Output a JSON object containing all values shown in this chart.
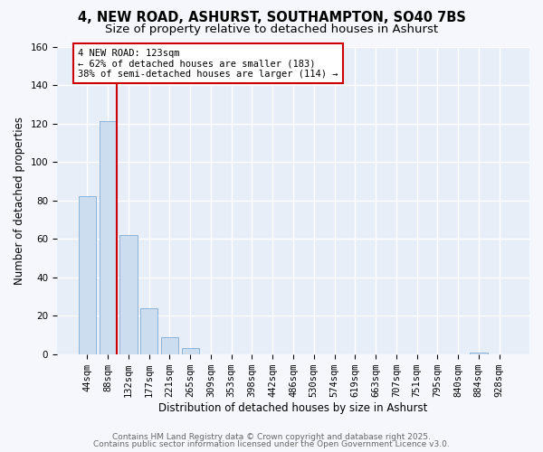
{
  "title": "4, NEW ROAD, ASHURST, SOUTHAMPTON, SO40 7BS",
  "subtitle": "Size of property relative to detached houses in Ashurst",
  "xlabel": "Distribution of detached houses by size in Ashurst",
  "ylabel": "Number of detached properties",
  "bar_labels": [
    "44sqm",
    "88sqm",
    "132sqm",
    "177sqm",
    "221sqm",
    "265sqm",
    "309sqm",
    "353sqm",
    "398sqm",
    "442sqm",
    "486sqm",
    "530sqm",
    "574sqm",
    "619sqm",
    "663sqm",
    "707sqm",
    "751sqm",
    "795sqm",
    "840sqm",
    "884sqm",
    "928sqm"
  ],
  "bar_values": [
    82,
    121,
    62,
    24,
    9,
    3,
    0,
    0,
    0,
    0,
    0,
    0,
    0,
    0,
    0,
    0,
    0,
    0,
    0,
    1,
    0
  ],
  "bar_color": "#ccddf0",
  "bar_edge_color": "#8ab4d8",
  "background_color": "#f5f7fc",
  "plot_bg_color": "#e8eef8",
  "grid_color": "#ffffff",
  "vline_color": "#cc0000",
  "annotation_box_text": "4 NEW ROAD: 123sqm\n← 62% of detached houses are smaller (183)\n38% of semi-detached houses are larger (114) →",
  "annotation_box_edge_color": "#cc0000",
  "ylim": [
    0,
    160
  ],
  "yticks": [
    0,
    20,
    40,
    60,
    80,
    100,
    120,
    140,
    160
  ],
  "footer_line1": "Contains HM Land Registry data © Crown copyright and database right 2025.",
  "footer_line2": "Contains public sector information licensed under the Open Government Licence v3.0.",
  "title_fontsize": 10.5,
  "subtitle_fontsize": 9.5,
  "axis_label_fontsize": 8.5,
  "tick_fontsize": 7.5,
  "annotation_fontsize": 7.5,
  "footer_fontsize": 6.5
}
